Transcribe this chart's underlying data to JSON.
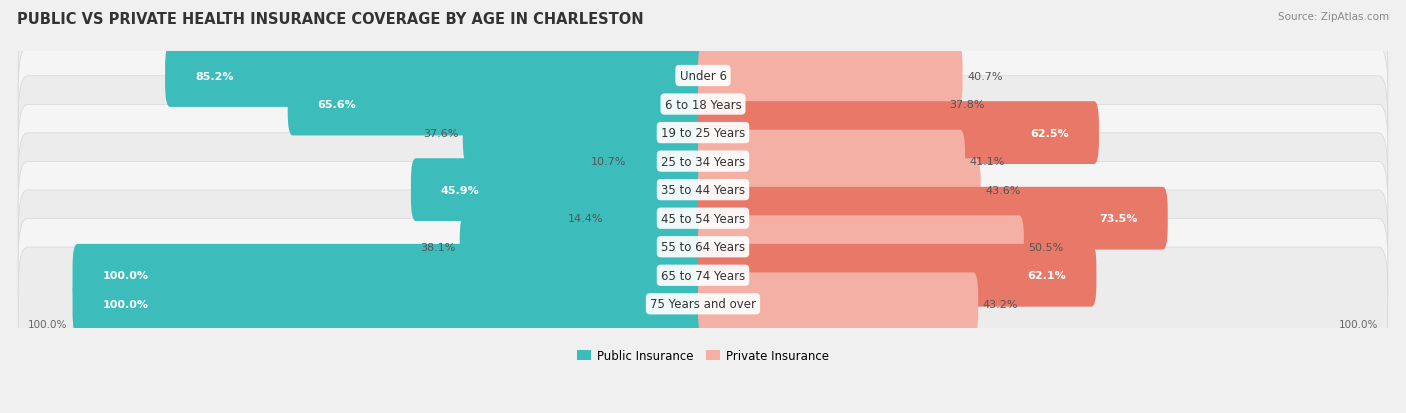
{
  "title": "PUBLIC VS PRIVATE HEALTH INSURANCE COVERAGE BY AGE IN CHARLESTON",
  "source": "Source: ZipAtlas.com",
  "categories": [
    "Under 6",
    "6 to 18 Years",
    "19 to 25 Years",
    "25 to 34 Years",
    "35 to 44 Years",
    "45 to 54 Years",
    "55 to 64 Years",
    "65 to 74 Years",
    "75 Years and over"
  ],
  "public_values": [
    85.2,
    65.6,
    37.6,
    10.7,
    45.9,
    14.4,
    38.1,
    100.0,
    100.0
  ],
  "private_values": [
    40.7,
    37.8,
    62.5,
    41.1,
    43.6,
    73.5,
    50.5,
    62.1,
    43.2
  ],
  "public_color": "#3dbcbc",
  "private_color_light": "#f4b0a4",
  "private_color_strong": "#e87868",
  "row_colors": [
    "#ececec",
    "#f5f5f5"
  ],
  "title_fontsize": 10.5,
  "label_fontsize": 8.5,
  "value_fontsize": 8.0,
  "legend_fontsize": 8.5,
  "source_fontsize": 7.5
}
